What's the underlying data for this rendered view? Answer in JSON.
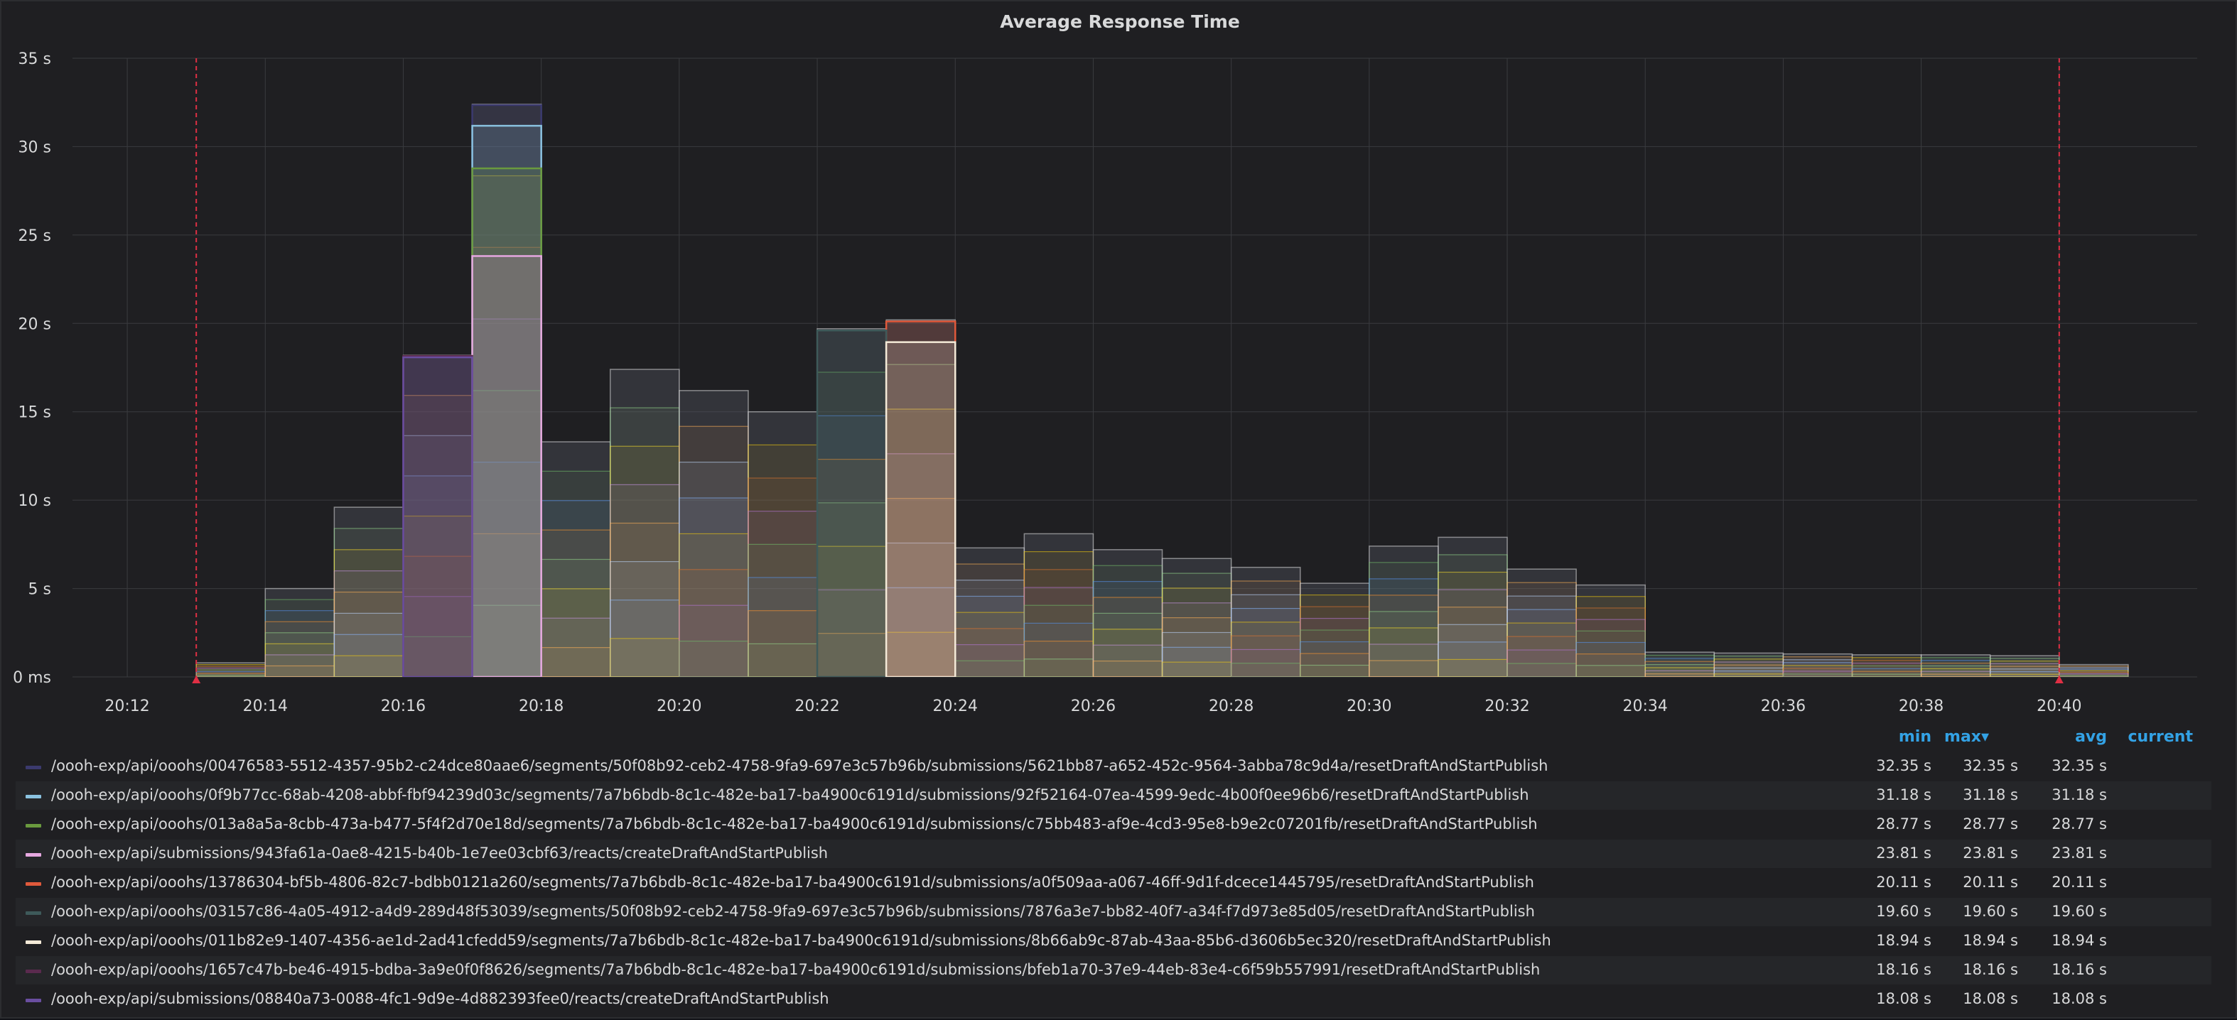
{
  "panel": {
    "title": "Average Response Time"
  },
  "legend": {
    "headers": {
      "min": "min",
      "max": "max",
      "avg": "avg",
      "current": "current",
      "sort_indicator": "▾"
    },
    "rows": [
      {
        "name": "/oooh-exp/api/ooohs/00476583-5512-4357-95b2-c24dce80aae6/segments/50f08b92-ceb2-4758-9fa9-697e3c57b96b/submissions/5621bb87-a652-452c-9564-3abba78c9d4a/resetDraftAndStartPublish",
        "color": "#3b3a6e",
        "min": "32.35 s",
        "max": "32.35 s",
        "avg": "32.35 s"
      },
      {
        "name": "/oooh-exp/api/ooohs/0f9b77cc-68ab-4208-abbf-fbf94239d03c/segments/7a7b6bdb-8c1c-482e-ba17-ba4900c6191d/submissions/92f52164-07ea-4599-9edc-4b00f0ee96b6/resetDraftAndStartPublish",
        "color": "#8ac2e0",
        "min": "31.18 s",
        "max": "31.18 s",
        "avg": "31.18 s"
      },
      {
        "name": "/oooh-exp/api/ooohs/013a8a5a-8cbb-473a-b477-5f4f2d70e18d/segments/7a7b6bdb-8c1c-482e-ba17-ba4900c6191d/submissions/c75bb483-af9e-4cd3-95e8-b9e2c07201fb/resetDraftAndStartPublish",
        "color": "#6a9a3e",
        "min": "28.77 s",
        "max": "28.77 s",
        "avg": "28.77 s"
      },
      {
        "name": "/oooh-exp/api/submissions/943fa61a-0ae8-4215-b40b-1e7ee03cbf63/reacts/createDraftAndStartPublish",
        "color": "#e6a8e0",
        "min": "23.81 s",
        "max": "23.81 s",
        "avg": "23.81 s"
      },
      {
        "name": "/oooh-exp/api/ooohs/13786304-bf5b-4806-82c7-bdbb0121a260/segments/7a7b6bdb-8c1c-482e-ba17-ba4900c6191d/submissions/a0f509aa-a067-46ff-9d1f-dcece1445795/resetDraftAndStartPublish",
        "color": "#e0593b",
        "min": "20.11 s",
        "max": "20.11 s",
        "avg": "20.11 s"
      },
      {
        "name": "/oooh-exp/api/ooohs/03157c86-4a05-4912-a4d9-289d48f53039/segments/50f08b92-ceb2-4758-9fa9-697e3c57b96b/submissions/7876a3e7-bb82-40f7-a34f-f7d973e85d05/resetDraftAndStartPublish",
        "color": "#3e5a5a",
        "min": "19.60 s",
        "max": "19.60 s",
        "avg": "19.60 s"
      },
      {
        "name": "/oooh-exp/api/ooohs/011b82e9-1407-4356-ae1d-2ad41cfedd59/segments/7a7b6bdb-8c1c-482e-ba17-ba4900c6191d/submissions/8b66ab9c-87ab-43aa-85b6-d3606b5ec320/resetDraftAndStartPublish",
        "color": "#f4ead8",
        "min": "18.94 s",
        "max": "18.94 s",
        "avg": "18.94 s"
      },
      {
        "name": "/oooh-exp/api/ooohs/1657c47b-be46-4915-bdba-3a9e0f0f8626/segments/7a7b6bdb-8c1c-482e-ba17-ba4900c6191d/submissions/bfeb1a70-37e9-44eb-83e4-c6f59b557991/resetDraftAndStartPublish",
        "color": "#5a2a4e",
        "min": "18.16 s",
        "max": "18.16 s",
        "avg": "18.16 s"
      },
      {
        "name": "/oooh-exp/api/submissions/08840a73-0088-4fc1-9d9e-4d882393fee0/reacts/createDraftAndStartPublish",
        "color": "#6a4ea0",
        "min": "18.08 s",
        "max": "18.08 s",
        "avg": "18.08 s"
      }
    ]
  },
  "chart_data": {
    "type": "area",
    "title": "Average Response Time",
    "x_ticks": [
      "20:12",
      "20:14",
      "20:16",
      "20:18",
      "20:20",
      "20:22",
      "20:24",
      "20:26",
      "20:28",
      "20:30",
      "20:32",
      "20:34",
      "20:36",
      "20:38",
      "20:40"
    ],
    "y_ticks": [
      "0 ms",
      "5 s",
      "10 s",
      "15 s",
      "20 s",
      "25 s",
      "30 s",
      "35 s"
    ],
    "ylim": [
      0,
      35
    ],
    "xlim": [
      "20:11",
      "20:42"
    ],
    "grid": true,
    "step": true,
    "annotations": [
      {
        "time": "20:13"
      },
      {
        "time": "20:40"
      }
    ],
    "bucket_starts": [
      "20:13",
      "20:14",
      "20:15",
      "20:16",
      "20:17",
      "20:18",
      "20:19",
      "20:20",
      "20:21",
      "20:22",
      "20:23",
      "20:24",
      "20:25",
      "20:26",
      "20:27",
      "20:28",
      "20:29",
      "20:30",
      "20:31",
      "20:32",
      "20:33",
      "20:34",
      "20:35",
      "20:36",
      "20:37",
      "20:38",
      "20:39",
      "20:40"
    ],
    "peak_envelope_s": [
      0.8,
      5.0,
      9.6,
      18.2,
      32.4,
      13.3,
      17.4,
      16.2,
      15.0,
      19.7,
      20.2,
      7.3,
      8.1,
      7.2,
      6.7,
      6.2,
      5.3,
      7.4,
      7.9,
      6.1,
      5.2,
      1.4,
      1.35,
      1.3,
      1.25,
      1.25,
      1.2,
      0.7
    ],
    "series": [
      {
        "name": "/oooh-exp/api/ooohs/00476583-5512-4357-95b2-c24dce80aae6/segments/50f08b92-ceb2-4758-9fa9-697e3c57b96b/submissions/5621bb87-a652-452c-9564-3abba78c9d4a/resetDraftAndStartPublish",
        "color": "#3b3a6e",
        "points": [
          [
            "20:17",
            32.35
          ]
        ]
      },
      {
        "name": "/oooh-exp/api/ooohs/0f9b77cc-68ab-4208-abbf-fbf94239d03c/segments/7a7b6bdb-8c1c-482e-ba17-ba4900c6191d/submissions/92f52164-07ea-4599-9edc-4b00f0ee96b6/resetDraftAndStartPublish",
        "color": "#8ac2e0",
        "points": [
          [
            "20:17",
            31.18
          ]
        ]
      },
      {
        "name": "/oooh-exp/api/ooohs/013a8a5a-8cbb-473a-b477-5f4f2d70e18d/segments/7a7b6bdb-8c1c-482e-ba17-ba4900c6191d/submissions/c75bb483-af9e-4cd3-95e8-b9e2c07201fb/resetDraftAndStartPublish",
        "color": "#6a9a3e",
        "points": [
          [
            "20:17",
            28.77
          ]
        ]
      },
      {
        "name": "/oooh-exp/api/submissions/943fa61a-0ae8-4215-b40b-1e7ee03cbf63/reacts/createDraftAndStartPublish",
        "color": "#e6a8e0",
        "points": [
          [
            "20:17",
            23.81
          ]
        ]
      },
      {
        "name": "/oooh-exp/api/ooohs/13786304-bf5b-4806-82c7-bdbb0121a260/segments/7a7b6bdb-8c1c-482e-ba17-ba4900c6191d/submissions/a0f509aa-a067-46ff-9d1f-dcece1445795/resetDraftAndStartPublish",
        "color": "#e0593b",
        "points": [
          [
            "20:23",
            20.11
          ]
        ]
      },
      {
        "name": "/oooh-exp/api/ooohs/03157c86-4a05-4912-a4d9-289d48f53039/segments/50f08b92-ceb2-4758-9fa9-697e3c57b96b/submissions/7876a3e7-bb82-40f7-a34f-f7d973e85d05/resetDraftAndStartPublish",
        "color": "#3e5a5a",
        "points": [
          [
            "20:22",
            19.6
          ]
        ]
      },
      {
        "name": "/oooh-exp/api/ooohs/011b82e9-1407-4356-ae1d-2ad41cfedd59/segments/7a7b6bdb-8c1c-482e-ba17-ba4900c6191d/submissions/8b66ab9c-87ab-43aa-85b6-d3606b5ec320/resetDraftAndStartPublish",
        "color": "#f4ead8",
        "points": [
          [
            "20:23",
            18.94
          ]
        ]
      },
      {
        "name": "/oooh-exp/api/ooohs/1657c47b-be46-4915-bdba-3a9e0f0f8626/segments/7a7b6bdb-8c1c-482e-ba17-ba4900c6191d/submissions/bfeb1a70-37e9-44eb-83e4-c6f59b557991/resetDraftAndStartPublish",
        "color": "#5a2a4e",
        "points": [
          [
            "20:16",
            18.16
          ]
        ]
      },
      {
        "name": "/oooh-exp/api/submissions/08840a73-0088-4fc1-9d9e-4d882393fee0/reacts/createDraftAndStartPublish",
        "color": "#6a4ea0",
        "points": [
          [
            "20:16",
            18.08
          ]
        ]
      }
    ]
  },
  "colors": {
    "background": "#1f1f22",
    "grid": "#3a3b3f",
    "axis_text": "#d8d9da",
    "header": "#33a2e5",
    "annotation": "#e02f44"
  }
}
